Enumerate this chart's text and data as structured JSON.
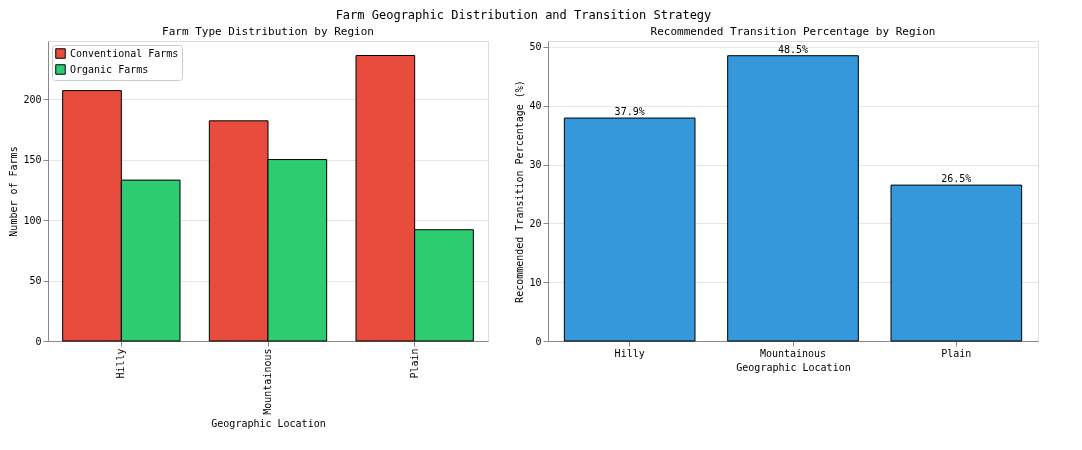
{
  "chart_data": [
    {
      "type": "bar",
      "title": "Farm Type Distribution by Region",
      "xlabel": "Geographic Location",
      "ylabel": "Number of Farms",
      "annotations": [
        "Farm Geographic Distribution and Transition Strategy"
      ],
      "categories": [
        "Hilly",
        "Mountainous",
        "Plain"
      ],
      "series": [
        {
          "name": "Conventional Farms",
          "color": "#e74c3c",
          "values": [
            207,
            182,
            236
          ]
        },
        {
          "name": "Organic Farms",
          "color": "#2ecc71",
          "values": [
            133,
            150,
            92
          ]
        }
      ],
      "ylim": [
        0,
        248
      ],
      "yticks": [
        0,
        50,
        100,
        150,
        200
      ],
      "grid": "y",
      "legend": "top left"
    },
    {
      "type": "bar",
      "title": "Recommended Transition Percentage by Region",
      "xlabel": "Geographic Location",
      "ylabel": "Recommended Transition Percentage (%)",
      "categories": [
        "Hilly",
        "Mountainous",
        "Plain"
      ],
      "values": [
        37.9,
        48.5,
        26.5
      ],
      "color": "#3498db",
      "value_labels": [
        "37.9%",
        "48.5%",
        "26.5%"
      ],
      "ylim": [
        0,
        51
      ],
      "yticks": [
        0,
        10,
        20,
        30,
        40,
        50
      ],
      "grid": "y"
    }
  ]
}
